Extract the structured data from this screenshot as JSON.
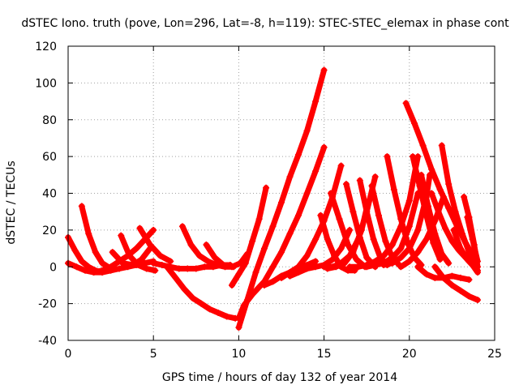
{
  "chart_data": {
    "type": "scatter",
    "title": "dSTEC Iono. truth (pove, Lon=296, Lat=-8, h=119): STEC-STEC_elemax in phase cont",
    "xlabel": "GPS time / hours of day 132 of year 2014",
    "ylabel": "dSTEC  / TECUs",
    "xlim": [
      0,
      25
    ],
    "ylim": [
      -40,
      120
    ],
    "xticks": [
      0,
      5,
      10,
      15,
      20,
      25
    ],
    "yticks": [
      -40,
      -20,
      0,
      20,
      40,
      60,
      80,
      100,
      120
    ],
    "grid": true,
    "marker": "+",
    "color": "#ff0000",
    "series": [
      {
        "x": [
          10.0,
          10.5,
          11.0,
          11.5,
          12.0,
          12.5,
          13.0,
          13.5,
          14.0,
          14.5,
          15.0
        ],
        "y": [
          -33,
          -18,
          -3,
          10,
          22,
          35,
          49,
          61,
          74,
          90,
          107
        ]
      },
      {
        "x": [
          10.0,
          10.3,
          10.8,
          11.5,
          12.0,
          12.5,
          13.0,
          13.5,
          14.0,
          14.5,
          15.0
        ],
        "y": [
          -28,
          -21,
          -15,
          -8,
          0,
          8,
          18,
          28,
          40,
          52,
          65
        ]
      },
      {
        "x": [
          5.8,
          6.3,
          6.8,
          7.3,
          7.8,
          8.3,
          8.8,
          9.3,
          9.8
        ],
        "y": [
          0,
          -6,
          -12,
          -17,
          -20,
          -23,
          -25,
          -27,
          -28
        ]
      },
      {
        "x": [
          9.6,
          10.0,
          10.4,
          10.8,
          11.2,
          11.6
        ],
        "y": [
          -10,
          -4,
          2,
          14,
          26,
          43
        ]
      },
      {
        "x": [
          6.7,
          7.2,
          7.7,
          8.2,
          8.7,
          9.2,
          9.7
        ],
        "y": [
          22,
          12,
          6,
          3,
          1,
          0,
          0
        ]
      },
      {
        "x": [
          8.1,
          8.6,
          9.1,
          9.6,
          10.1,
          10.5
        ],
        "y": [
          12,
          5,
          1,
          0,
          2,
          7
        ]
      },
      {
        "x": [
          5.0,
          5.5,
          6.0,
          6.5,
          7.0,
          7.5,
          8.0,
          8.5,
          9.0,
          9.5
        ],
        "y": [
          2,
          1,
          0,
          -1,
          -1,
          -1,
          0,
          0,
          1,
          1
        ]
      },
      {
        "x": [
          0.8,
          1.2,
          1.6,
          2.0,
          2.5
        ],
        "y": [
          33,
          18,
          8,
          2,
          -1
        ]
      },
      {
        "x": [
          0.0,
          0.4,
          0.8,
          1.2,
          1.6,
          2.0
        ],
        "y": [
          16,
          9,
          3,
          0,
          -2,
          -3
        ]
      },
      {
        "x": [
          0.0,
          0.5,
          1.0,
          1.5,
          2.0,
          2.5,
          3.0,
          3.5,
          4.0,
          4.5,
          5.0
        ],
        "y": [
          2,
          0,
          -2,
          -3,
          -3,
          -2,
          -1,
          0,
          1,
          2,
          3
        ]
      },
      {
        "x": [
          1.5,
          2.0,
          2.5,
          3.0,
          3.5,
          4.0,
          4.5,
          5.0
        ],
        "y": [
          -3,
          -2,
          0,
          3,
          6,
          10,
          15,
          20
        ]
      },
      {
        "x": [
          3.1,
          3.6,
          4.1,
          4.6,
          5.1
        ],
        "y": [
          17,
          6,
          1,
          -1,
          -2
        ]
      },
      {
        "x": [
          4.2,
          4.8,
          5.4,
          6.0
        ],
        "y": [
          21,
          12,
          6,
          3
        ]
      },
      {
        "x": [
          2.6,
          3.2,
          3.8,
          4.3,
          4.8
        ],
        "y": [
          8,
          2,
          1,
          4,
          10
        ]
      },
      {
        "x": [
          11.5,
          12.0,
          12.5,
          13.0,
          13.5,
          14.0,
          14.5
        ],
        "y": [
          -10,
          -8,
          -5,
          -3,
          -1,
          1,
          3
        ]
      },
      {
        "x": [
          12.5,
          13.0,
          13.5,
          14.0,
          14.5,
          15.0,
          15.5,
          16.0
        ],
        "y": [
          -6,
          -3,
          0,
          6,
          15,
          25,
          38,
          55
        ]
      },
      {
        "x": [
          13.0,
          13.5,
          14.0,
          14.5,
          15.0,
          15.5,
          16.0,
          16.5
        ],
        "y": [
          -5,
          -3,
          -1,
          0,
          1,
          4,
          10,
          20
        ]
      },
      {
        "x": [
          14.8,
          15.2,
          15.6,
          16.0,
          16.4,
          16.8
        ],
        "y": [
          28,
          15,
          6,
          0,
          -2,
          -2
        ]
      },
      {
        "x": [
          15.2,
          15.7,
          16.2,
          16.7,
          17.2,
          17.5
        ],
        "y": [
          -1,
          0,
          2,
          8,
          20,
          32
        ]
      },
      {
        "x": [
          15.0,
          15.5,
          16.0,
          16.5,
          17.0,
          17.5,
          18.0
        ],
        "y": [
          0,
          0,
          2,
          6,
          15,
          30,
          49
        ]
      },
      {
        "x": [
          15.4,
          15.9,
          16.4,
          16.9,
          17.4
        ],
        "y": [
          40,
          26,
          12,
          4,
          0
        ]
      },
      {
        "x": [
          16.3,
          16.7,
          17.1,
          17.5,
          18.0
        ],
        "y": [
          45,
          30,
          16,
          5,
          0
        ]
      },
      {
        "x": [
          17.1,
          17.5,
          17.9,
          18.3,
          18.7
        ],
        "y": [
          47,
          30,
          15,
          5,
          1
        ]
      },
      {
        "x": [
          17.8,
          18.2,
          18.6,
          19.0,
          19.4
        ],
        "y": [
          44,
          28,
          14,
          5,
          1
        ]
      },
      {
        "x": [
          16.5,
          17.0,
          17.5,
          18.0,
          18.5,
          19.0,
          19.5,
          20.0,
          20.5
        ],
        "y": [
          0,
          0,
          1,
          3,
          6,
          12,
          22,
          36,
          60
        ]
      },
      {
        "x": [
          17.5,
          18.0,
          18.5,
          19.0,
          19.5,
          20.0,
          20.5
        ],
        "y": [
          0,
          1,
          2,
          5,
          10,
          22,
          40
        ]
      },
      {
        "x": [
          18.5,
          19.0,
          19.5,
          20.0,
          20.5,
          21.0,
          21.2
        ],
        "y": [
          1,
          2,
          5,
          10,
          20,
          38,
          50
        ]
      },
      {
        "x": [
          18.7,
          19.1,
          19.5,
          19.9,
          20.3,
          20.7
        ],
        "y": [
          60,
          42,
          26,
          13,
          5,
          1
        ]
      },
      {
        "x": [
          20.2,
          20.6,
          21.0,
          21.4,
          21.8
        ],
        "y": [
          60,
          44,
          28,
          13,
          4
        ]
      },
      {
        "x": [
          20.7,
          21.1,
          21.5,
          21.9,
          22.3
        ],
        "y": [
          50,
          33,
          18,
          7,
          2
        ]
      },
      {
        "x": [
          19.5,
          20.0,
          20.5,
          21.0,
          21.5,
          22.0
        ],
        "y": [
          0,
          3,
          8,
          15,
          25,
          38
        ]
      },
      {
        "x": [
          19.8,
          20.3,
          20.8,
          21.3,
          21.8,
          22.3,
          22.8,
          23.3,
          23.8
        ],
        "y": [
          89,
          78,
          66,
          53,
          42,
          32,
          22,
          13,
          5
        ]
      },
      {
        "x": [
          21.9,
          22.3,
          22.7,
          23.1,
          23.5,
          23.9
        ],
        "y": [
          66,
          45,
          30,
          18,
          8,
          2
        ]
      },
      {
        "x": [
          21.3,
          21.7,
          22.1,
          22.5,
          22.9,
          23.3,
          23.7,
          24.0
        ],
        "y": [
          40,
          30,
          21,
          14,
          9,
          5,
          1,
          -3
        ]
      },
      {
        "x": [
          20.5,
          21.0,
          21.5,
          22.0,
          22.5,
          23.0,
          23.5
        ],
        "y": [
          0,
          -4,
          -6,
          -6,
          -5,
          -6,
          -7
        ]
      },
      {
        "x": [
          21.5,
          22.0,
          22.5,
          23.0,
          23.5,
          24.0
        ],
        "y": [
          0,
          -6,
          -10,
          -13,
          -16,
          -18
        ]
      },
      {
        "x": [
          23.2,
          23.5,
          23.8,
          24.0
        ],
        "y": [
          38,
          27,
          12,
          0
        ]
      },
      {
        "x": [
          23.4,
          23.7,
          24.0
        ],
        "y": [
          27,
          15,
          3
        ]
      },
      {
        "x": [
          22.6,
          23.0,
          23.4,
          23.8,
          24.0
        ],
        "y": [
          20,
          10,
          4,
          0,
          -2
        ]
      }
    ]
  }
}
